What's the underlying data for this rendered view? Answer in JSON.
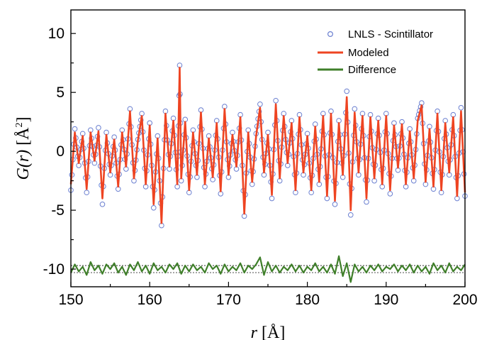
{
  "chart_data": {
    "type": "line",
    "xlabel_var": "r",
    "xlabel_unit": "[Å]",
    "ylabel_var": "G(r)",
    "ylabel_unit": "[Å",
    "ylabel_sup": "2",
    "ylabel_close": "]",
    "xlim": [
      150,
      200
    ],
    "ylim": [
      -11.5,
      12
    ],
    "x_ticks": [
      150,
      160,
      170,
      180,
      190,
      200
    ],
    "y_ticks": [
      10,
      5,
      0,
      -5,
      -10
    ],
    "grid": false,
    "legend_position": "top-right",
    "colors": {
      "observed": "#6a7fd0",
      "modeled": "#ee4422",
      "difference": "#3f7f2a"
    },
    "series": [
      {
        "name": "LNLS - Scintillator",
        "style": "open-circles",
        "x": [
          150.0,
          150.5,
          151.0,
          151.5,
          152.0,
          152.5,
          153.0,
          153.5,
          154.0,
          154.5,
          155.0,
          155.5,
          156.0,
          156.5,
          157.0,
          157.5,
          158.0,
          158.5,
          159.0,
          159.5,
          160.0,
          160.5,
          161.0,
          161.5,
          162.0,
          162.5,
          163.0,
          163.5,
          163.8,
          164.0,
          164.5,
          165.0,
          165.5,
          166.0,
          166.5,
          167.0,
          167.5,
          168.0,
          168.5,
          169.0,
          169.5,
          170.0,
          170.5,
          171.0,
          171.5,
          172.0,
          172.5,
          173.0,
          173.5,
          174.0,
          174.5,
          175.0,
          175.5,
          176.0,
          176.5,
          177.0,
          177.5,
          178.0,
          178.5,
          179.0,
          179.5,
          180.0,
          180.5,
          181.0,
          181.5,
          182.0,
          182.5,
          183.0,
          183.5,
          184.0,
          184.5,
          185.0,
          185.5,
          186.0,
          186.5,
          187.0,
          187.5,
          188.0,
          188.5,
          189.0,
          189.5,
          190.0,
          190.5,
          191.0,
          191.5,
          192.0,
          192.5,
          193.0,
          193.5,
          194.0,
          194.5,
          195.0,
          195.5,
          196.0,
          196.5,
          197.0,
          197.5,
          198.0,
          198.5,
          199.0,
          199.5,
          200.0
        ],
        "y": [
          -3.3,
          1.9,
          -1.2,
          1.5,
          -3.5,
          1.8,
          -1.0,
          2.0,
          -4.5,
          1.6,
          -2.0,
          1.2,
          -3.2,
          1.8,
          -1.5,
          3.6,
          -2.5,
          1.0,
          3.2,
          -3.0,
          2.4,
          -4.8,
          1.3,
          -6.3,
          3.4,
          -1.5,
          2.8,
          -3.0,
          7.3,
          -2.5,
          2.7,
          -3.5,
          1.8,
          -2.2,
          3.5,
          -3.0,
          1.3,
          -2.4,
          2.6,
          -3.6,
          3.8,
          -2.2,
          1.6,
          -1.5,
          3.1,
          -5.5,
          1.8,
          -2.8,
          1.5,
          4.0,
          -2.0,
          1.6,
          -4.0,
          4.3,
          -2.5,
          3.2,
          -1.2,
          2.6,
          -3.5,
          3.1,
          -2.0,
          1.5,
          -3.5,
          2.3,
          -2.8,
          3.2,
          -4.0,
          3.4,
          -4.5,
          2.6,
          -2.2,
          5.1,
          -5.4,
          3.6,
          -2.0,
          3.2,
          -4.3,
          3.1,
          -2.5,
          2.8,
          -3.0,
          3.2,
          -3.6,
          2.4,
          -1.6,
          2.5,
          -3.0,
          1.9,
          -2.5,
          2.8,
          4.1,
          -2.8,
          2.1,
          -3.2,
          3.4,
          -3.5,
          2.6,
          -2.0,
          3.1,
          -4.0,
          3.7,
          -3.8
        ]
      },
      {
        "name": "Modeled",
        "style": "line",
        "x": [
          150.0,
          150.5,
          151.0,
          151.5,
          152.0,
          152.5,
          153.0,
          153.5,
          154.0,
          154.5,
          155.0,
          155.5,
          156.0,
          156.5,
          157.0,
          157.5,
          158.0,
          158.5,
          159.0,
          159.5,
          160.0,
          160.5,
          161.0,
          161.5,
          162.0,
          162.5,
          163.0,
          163.5,
          163.8,
          164.0,
          164.5,
          165.0,
          165.5,
          166.0,
          166.5,
          167.0,
          167.5,
          168.0,
          168.5,
          169.0,
          169.5,
          170.0,
          170.5,
          171.0,
          171.5,
          172.0,
          172.5,
          173.0,
          173.5,
          174.0,
          174.5,
          175.0,
          175.5,
          176.0,
          176.5,
          177.0,
          177.5,
          178.0,
          178.5,
          179.0,
          179.5,
          180.0,
          180.5,
          181.0,
          181.5,
          182.0,
          182.5,
          183.0,
          183.5,
          184.0,
          184.5,
          185.0,
          185.5,
          186.0,
          186.5,
          187.0,
          187.5,
          188.0,
          188.5,
          189.0,
          189.5,
          190.0,
          190.5,
          191.0,
          191.5,
          192.0,
          192.5,
          193.0,
          193.5,
          194.0,
          194.5,
          195.0,
          195.5,
          196.0,
          196.5,
          197.0,
          197.5,
          198.0,
          198.5,
          199.0,
          199.5,
          200.0
        ],
        "y": [
          -2.8,
          1.6,
          -1.0,
          1.3,
          -3.2,
          1.6,
          -0.8,
          1.7,
          -4.0,
          1.4,
          -1.8,
          1.0,
          -3.0,
          1.6,
          -1.3,
          3.4,
          -2.3,
          0.9,
          3.0,
          -2.8,
          2.2,
          -4.5,
          1.1,
          -6.1,
          3.2,
          -1.3,
          2.6,
          -2.8,
          7.1,
          -2.3,
          2.5,
          -3.3,
          1.6,
          -2.0,
          3.3,
          -2.8,
          1.1,
          -2.2,
          2.4,
          -3.4,
          3.6,
          -2.0,
          1.4,
          -1.3,
          2.9,
          -5.3,
          1.6,
          -2.6,
          1.3,
          3.7,
          -1.8,
          1.4,
          -3.7,
          4.0,
          -2.3,
          3.0,
          -1.0,
          2.4,
          -3.3,
          2.9,
          -1.8,
          1.3,
          -3.3,
          2.1,
          -2.6,
          3.0,
          -3.8,
          3.2,
          -4.2,
          2.4,
          -2.0,
          4.6,
          -5.0,
          3.3,
          -1.8,
          3.0,
          -4.0,
          2.9,
          -2.3,
          2.6,
          -2.8,
          3.0,
          -3.3,
          2.2,
          -1.4,
          2.3,
          -2.8,
          1.7,
          -2.3,
          2.6,
          3.9,
          -2.6,
          1.9,
          -3.0,
          3.2,
          -3.3,
          2.4,
          -1.8,
          2.9,
          -3.8,
          3.4,
          -3.5
        ]
      },
      {
        "name": "Difference",
        "style": "line",
        "x": [
          150.0,
          150.5,
          151.0,
          151.5,
          152.0,
          152.5,
          153.0,
          153.5,
          154.0,
          154.5,
          155.0,
          155.5,
          156.0,
          156.5,
          157.0,
          157.5,
          158.0,
          158.5,
          159.0,
          159.5,
          160.0,
          160.5,
          161.0,
          161.5,
          162.0,
          162.5,
          163.0,
          163.5,
          164.0,
          164.5,
          165.0,
          165.5,
          166.0,
          166.5,
          167.0,
          167.5,
          168.0,
          168.5,
          169.0,
          169.5,
          170.0,
          170.5,
          171.0,
          171.5,
          172.0,
          172.5,
          173.0,
          173.5,
          174.0,
          174.5,
          175.0,
          175.5,
          176.0,
          176.5,
          177.0,
          177.5,
          178.0,
          178.5,
          179.0,
          179.5,
          180.0,
          180.5,
          181.0,
          181.5,
          182.0,
          182.5,
          183.0,
          183.5,
          184.0,
          184.5,
          185.0,
          185.5,
          186.0,
          186.5,
          187.0,
          187.5,
          188.0,
          188.5,
          189.0,
          189.5,
          190.0,
          190.5,
          191.0,
          191.5,
          192.0,
          192.5,
          193.0,
          193.5,
          194.0,
          194.5,
          195.0,
          195.5,
          196.0,
          196.5,
          197.0,
          197.5,
          198.0,
          198.5,
          199.0,
          199.5,
          200.0
        ],
        "y": [
          -10.3,
          -9.6,
          -10.2,
          -9.8,
          -10.5,
          -9.4,
          -10.1,
          -9.7,
          -10.4,
          -9.6,
          -10.0,
          -9.5,
          -10.3,
          -9.8,
          -10.5,
          -9.6,
          -10.1,
          -9.4,
          -10.2,
          -9.7,
          -10.4,
          -9.5,
          -10.1,
          -9.8,
          -10.3,
          -9.6,
          -10.0,
          -9.5,
          -10.4,
          -9.7,
          -10.2,
          -9.6,
          -10.1,
          -9.8,
          -10.3,
          -9.5,
          -10.0,
          -9.7,
          -10.4,
          -9.6,
          -10.2,
          -9.8,
          -10.1,
          -9.5,
          -10.3,
          -9.7,
          -10.0,
          -9.6,
          -9.0,
          -10.5,
          -9.4,
          -10.2,
          -9.7,
          -10.3,
          -9.8,
          -10.1,
          -9.6,
          -10.2,
          -9.7,
          -10.3,
          -9.8,
          -10.1,
          -9.5,
          -10.2,
          -9.8,
          -10.3,
          -9.6,
          -10.4,
          -8.9,
          -10.6,
          -9.5,
          -11.1,
          -9.6,
          -10.2,
          -9.8,
          -10.3,
          -9.7,
          -10.1,
          -9.6,
          -10.2,
          -9.8,
          -10.0,
          -9.6,
          -10.2,
          -9.7,
          -10.1,
          -9.6,
          -10.3,
          -9.7,
          -10.2,
          -9.8,
          -10.4,
          -9.5,
          -10.1,
          -9.7,
          -10.3,
          -9.5,
          -10.2,
          -9.8,
          -10.1,
          -9.6
        ]
      }
    ],
    "reference_lines": [
      -9.7,
      -10.3
    ]
  }
}
